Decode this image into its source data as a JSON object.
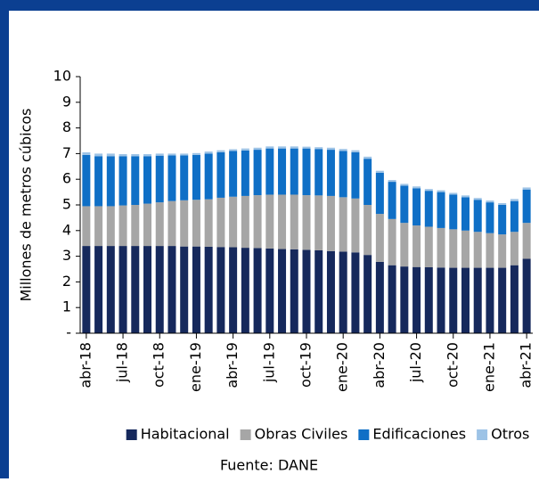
{
  "chart_data": {
    "type": "stacked_bar",
    "y_label": "Millones de metros cúbicos",
    "source": "Fuente: DANE",
    "categories": [
      "abr-18",
      null,
      null,
      "jul-18",
      null,
      null,
      "oct-18",
      null,
      null,
      "ene-19",
      null,
      null,
      "abr-19",
      null,
      null,
      "jul-19",
      null,
      null,
      "oct-19",
      null,
      null,
      "ene-20",
      null,
      null,
      "abr-20",
      null,
      null,
      "jul-20",
      null,
      null,
      "oct-20",
      null,
      null,
      "ene-21",
      null,
      null,
      "abr-21"
    ],
    "series": [
      {
        "name": "Habitacional",
        "color": "#16295c",
        "values": [
          3.4,
          3.4,
          3.4,
          3.4,
          3.4,
          3.4,
          3.4,
          3.4,
          3.38,
          3.38,
          3.37,
          3.36,
          3.35,
          3.33,
          3.32,
          3.3,
          3.28,
          3.27,
          3.25,
          3.23,
          3.2,
          3.18,
          3.15,
          3.05,
          2.78,
          2.65,
          2.6,
          2.58,
          2.57,
          2.56,
          2.55,
          2.55,
          2.55,
          2.55,
          2.55,
          2.65,
          2.9
        ]
      },
      {
        "name": "Obras Civiles",
        "color": "#a6a6a6",
        "values": [
          1.55,
          1.55,
          1.55,
          1.58,
          1.6,
          1.65,
          1.7,
          1.75,
          1.8,
          1.82,
          1.85,
          1.92,
          1.97,
          2.02,
          2.06,
          2.1,
          2.12,
          2.13,
          2.13,
          2.14,
          2.15,
          2.12,
          2.1,
          1.95,
          1.87,
          1.8,
          1.7,
          1.62,
          1.58,
          1.54,
          1.5,
          1.45,
          1.4,
          1.35,
          1.3,
          1.3,
          1.4
        ]
      },
      {
        "name": "Edificaciones",
        "color": "#0f6fc6",
        "values": [
          2.0,
          1.95,
          1.95,
          1.92,
          1.9,
          1.85,
          1.82,
          1.78,
          1.75,
          1.75,
          1.78,
          1.77,
          1.78,
          1.77,
          1.77,
          1.8,
          1.8,
          1.8,
          1.82,
          1.81,
          1.8,
          1.8,
          1.8,
          1.8,
          1.6,
          1.45,
          1.45,
          1.45,
          1.4,
          1.4,
          1.35,
          1.3,
          1.25,
          1.2,
          1.15,
          1.2,
          1.3
        ]
      },
      {
        "name": "Otros",
        "color": "#9dc3e6",
        "values": [
          0.1,
          0.1,
          0.1,
          0.08,
          0.08,
          0.08,
          0.08,
          0.07,
          0.07,
          0.07,
          0.08,
          0.08,
          0.07,
          0.08,
          0.08,
          0.08,
          0.08,
          0.08,
          0.07,
          0.07,
          0.08,
          0.08,
          0.08,
          0.08,
          0.08,
          0.07,
          0.07,
          0.07,
          0.07,
          0.07,
          0.07,
          0.07,
          0.07,
          0.07,
          0.07,
          0.08,
          0.08
        ]
      }
    ],
    "ylim": [
      0,
      10
    ],
    "yticks": [
      {
        "value": 0,
        "label": "-"
      },
      1,
      2,
      3,
      4,
      5,
      6,
      7,
      8,
      9,
      10
    ],
    "legend": "bottom"
  }
}
